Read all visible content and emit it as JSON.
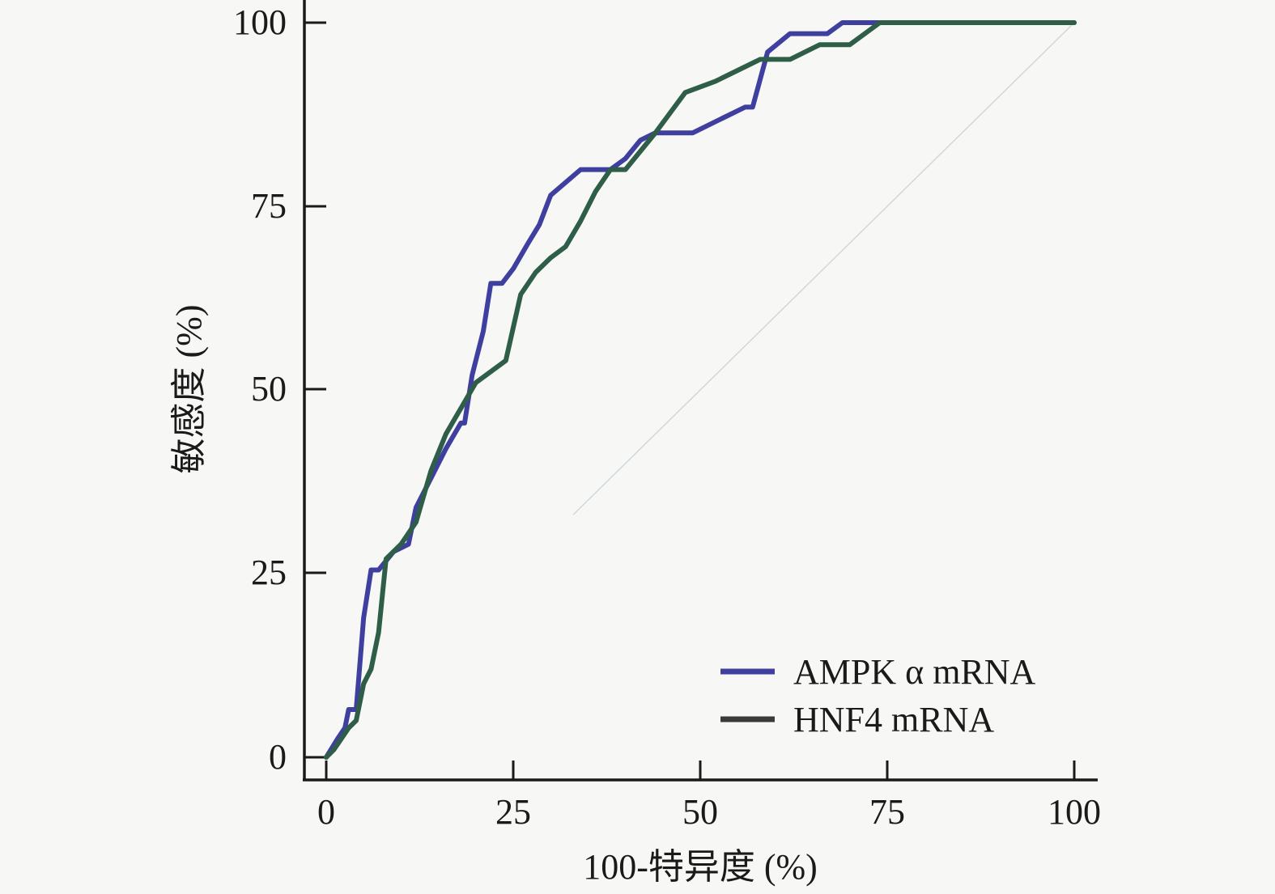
{
  "chart_data": {
    "type": "line",
    "xlabel": "100-特异度 (%)",
    "ylabel": "敏感度 (%)",
    "xlim": [
      0,
      100
    ],
    "ylim": [
      0,
      100
    ],
    "x_ticks": [
      "0",
      "25",
      "50",
      "75",
      "100"
    ],
    "y_ticks": [
      "0",
      "25",
      "50",
      "75",
      "100"
    ],
    "legend_position": "bottom-right",
    "reference_line": {
      "x": [
        33,
        100
      ],
      "y": [
        33,
        100
      ],
      "color": "#d0d8dc"
    },
    "series": [
      {
        "name": "AMPK α mRNA",
        "color": "#3f3fa0",
        "x": [
          0,
          1.5,
          2.5,
          3,
          4,
          5,
          6,
          7,
          9,
          11,
          12,
          14,
          16,
          18,
          18.5,
          19.5,
          21,
          22,
          22.5,
          23.5,
          25,
          27,
          28.5,
          30,
          34,
          38,
          40,
          42,
          44,
          49,
          53,
          56,
          57,
          59,
          62,
          64,
          67,
          69,
          72,
          75,
          100
        ],
        "y": [
          0,
          2.5,
          4,
          6.5,
          6.5,
          19,
          25.5,
          25.5,
          28,
          29,
          34,
          38,
          42,
          45.5,
          45.5,
          52,
          58,
          64.5,
          64.5,
          64.5,
          66.5,
          70,
          72.5,
          76.5,
          80,
          80,
          81.5,
          84,
          85,
          85,
          87,
          88.5,
          88.5,
          96,
          98.5,
          98.5,
          98.5,
          100,
          100,
          100,
          100
        ]
      },
      {
        "name": "HNF4 mRNA",
        "color": "#2f5e48",
        "x": [
          0,
          1,
          2,
          3,
          4,
          5,
          6,
          7,
          8,
          10,
          12,
          14,
          16,
          18,
          20,
          22,
          24,
          26,
          28,
          30,
          32,
          34,
          36,
          38,
          40,
          44,
          48,
          52,
          56,
          58,
          62,
          66,
          70,
          74,
          100
        ],
        "y": [
          0,
          1,
          2.5,
          4,
          5,
          10,
          12,
          17,
          27,
          29,
          32,
          39,
          44,
          47.5,
          51,
          52.5,
          54,
          63,
          66,
          68,
          69.5,
          73,
          77,
          80,
          80,
          85,
          90.5,
          92,
          94,
          95,
          95,
          97,
          97,
          100,
          100
        ]
      }
    ]
  }
}
